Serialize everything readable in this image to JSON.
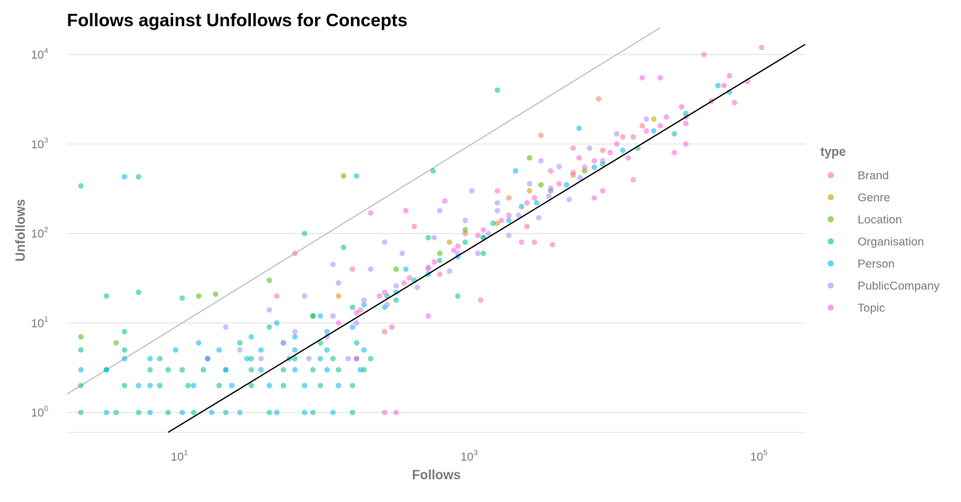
{
  "chart_data": {
    "type": "scatter",
    "title": "Follows against Unfollows for Concepts",
    "xlabel": "Follows",
    "ylabel": "Unfollows",
    "x_scale": "log10",
    "y_scale": "log10",
    "xlim": [
      1.6,
      200000
    ],
    "ylim": [
      0.6,
      20000
    ],
    "x_ticks": [
      {
        "value": 10,
        "base": "10",
        "exp": "1"
      },
      {
        "value": 1000,
        "base": "10",
        "exp": "3"
      },
      {
        "value": 100000,
        "base": "10",
        "exp": "5"
      }
    ],
    "y_ticks": [
      {
        "value": 1,
        "base": "10",
        "exp": "0"
      },
      {
        "value": 10,
        "base": "10",
        "exp": "1"
      },
      {
        "value": 100,
        "base": "10",
        "exp": "2"
      },
      {
        "value": 1000,
        "base": "10",
        "exp": "3"
      },
      {
        "value": 10000,
        "base": "10",
        "exp": "4"
      }
    ],
    "grid": "horizontal",
    "legend_title": "type",
    "legend_position": "right",
    "reference_lines": [
      {
        "kind": "identity",
        "color": "#bdbdbd",
        "points": [
          [
            1.6,
            1.6
          ],
          [
            20000,
            20000
          ]
        ]
      },
      {
        "kind": "fit",
        "color": "#000000",
        "points": [
          [
            8,
            0.6
          ],
          [
            200000,
            13000
          ]
        ]
      }
    ],
    "series": [
      {
        "name": "Brand",
        "color": "#F8766D",
        "points": [
          [
            7500,
            3200
          ],
          [
            13000,
            400
          ],
          [
            3600,
            75
          ],
          [
            2700,
            80
          ],
          [
            1150,
            18
          ],
          [
            250,
            8
          ],
          [
            2400,
            120
          ],
          [
            5000,
            900
          ],
          [
            15000,
            1600
          ],
          [
            8000,
            850
          ],
          [
            60,
            60
          ],
          [
            400,
            120
          ],
          [
            1800,
            250
          ],
          [
            30000,
            2000
          ],
          [
            600,
            35
          ],
          [
            45,
            20
          ],
          [
            3000,
            1250
          ],
          [
            900,
            100
          ],
          [
            150,
            40
          ],
          [
            11000,
            1200
          ]
        ]
      },
      {
        "name": "Genre",
        "color": "#C49A00",
        "points": [
          [
            18000,
            1900
          ],
          [
            2500,
            300
          ],
          [
            700,
            80
          ],
          [
            120,
            20
          ],
          [
            5000,
            450
          ],
          [
            1500,
            130
          ]
        ]
      },
      {
        "name": "Location",
        "color": "#53B400",
        "points": [
          [
            2,
            7
          ],
          [
            3.5,
            6
          ],
          [
            13,
            20
          ],
          [
            17,
            21
          ],
          [
            130,
            440
          ],
          [
            2500,
            700
          ],
          [
            900,
            110
          ],
          [
            300,
            40
          ],
          [
            40,
            30
          ],
          [
            3000,
            350
          ],
          [
            1200,
            90
          ],
          [
            80,
            12
          ],
          [
            6000,
            500
          ],
          [
            600,
            60
          ]
        ]
      },
      {
        "name": "Organisation",
        "color": "#00C094",
        "points": [
          [
            2,
            340
          ],
          [
            5,
            430
          ],
          [
            1500,
            4000
          ],
          [
            70,
            100
          ],
          [
            540,
            500
          ],
          [
            130,
            70
          ],
          [
            10,
            19
          ],
          [
            3,
            20
          ],
          [
            5,
            22
          ],
          [
            1,
            16
          ],
          [
            2,
            5
          ],
          [
            4,
            5
          ],
          [
            4,
            8
          ],
          [
            3,
            3
          ],
          [
            6,
            3
          ],
          [
            8,
            3
          ],
          [
            10,
            3
          ],
          [
            14,
            3
          ],
          [
            20,
            3
          ],
          [
            30,
            3
          ],
          [
            50,
            3
          ],
          [
            80,
            3
          ],
          [
            120,
            3
          ],
          [
            180,
            3
          ],
          [
            2,
            1
          ],
          [
            3.5,
            1
          ],
          [
            5,
            1
          ],
          [
            8,
            1
          ],
          [
            12,
            1
          ],
          [
            20,
            1
          ],
          [
            40,
            1
          ],
          [
            80,
            1
          ],
          [
            150,
            1
          ],
          [
            2,
            2
          ],
          [
            4,
            2
          ],
          [
            7,
            2
          ],
          [
            11,
            2
          ],
          [
            18,
            2
          ],
          [
            30,
            2
          ],
          [
            50,
            2
          ],
          [
            90,
            2
          ],
          [
            150,
            2
          ],
          [
            7,
            4
          ],
          [
            15,
            4
          ],
          [
            30,
            4
          ],
          [
            60,
            4
          ],
          [
            110,
            4
          ],
          [
            200,
            4
          ],
          [
            25,
            6
          ],
          [
            50,
            6
          ],
          [
            90,
            6
          ],
          [
            160,
            6
          ],
          [
            40,
            9
          ],
          [
            80,
            12
          ],
          [
            150,
            15
          ],
          [
            260,
            20
          ],
          [
            400,
            30
          ],
          [
            600,
            50
          ],
          [
            900,
            80
          ],
          [
            1400,
            130
          ],
          [
            2200,
            200
          ],
          [
            3500,
            300
          ],
          [
            25000,
            1300
          ],
          [
            8000,
            600
          ],
          [
            300,
            18
          ],
          [
            800,
            20
          ],
          [
            1200,
            60
          ],
          [
            500,
            90
          ],
          [
            14000,
            900
          ]
        ]
      },
      {
        "name": "Person",
        "color": "#00B6EB",
        "points": [
          [
            4,
            430
          ],
          [
            160,
            440
          ],
          [
            50000,
            4500
          ],
          [
            2000,
            500
          ],
          [
            5500,
            1500
          ],
          [
            1,
            20
          ],
          [
            1,
            3
          ],
          [
            2,
            3
          ],
          [
            3,
            3
          ],
          [
            4,
            4
          ],
          [
            5,
            2
          ],
          [
            6,
            4
          ],
          [
            9,
            5
          ],
          [
            13,
            6
          ],
          [
            3,
            1
          ],
          [
            6,
            1
          ],
          [
            10,
            1
          ],
          [
            16,
            1
          ],
          [
            25,
            1
          ],
          [
            45,
            1
          ],
          [
            70,
            1
          ],
          [
            110,
            1
          ],
          [
            6,
            2
          ],
          [
            12,
            2
          ],
          [
            22,
            2
          ],
          [
            40,
            2
          ],
          [
            70,
            2
          ],
          [
            120,
            2
          ],
          [
            20,
            3
          ],
          [
            35,
            3
          ],
          [
            60,
            3
          ],
          [
            100,
            3
          ],
          [
            170,
            3
          ],
          [
            15,
            4
          ],
          [
            28,
            4
          ],
          [
            55,
            4
          ],
          [
            90,
            4
          ],
          [
            160,
            4
          ],
          [
            18,
            5
          ],
          [
            35,
            5
          ],
          [
            60,
            5
          ],
          [
            100,
            5
          ],
          [
            180,
            5
          ],
          [
            30,
            7
          ],
          [
            60,
            7
          ],
          [
            100,
            8
          ],
          [
            150,
            9
          ],
          [
            45,
            10
          ],
          [
            90,
            12
          ],
          [
            180,
            16
          ],
          [
            300,
            22
          ],
          [
            500,
            35
          ],
          [
            800,
            55
          ],
          [
            1200,
            90
          ],
          [
            1800,
            140
          ],
          [
            2800,
            220
          ],
          [
            4500,
            350
          ],
          [
            7000,
            550
          ],
          [
            11000,
            850
          ],
          [
            18000,
            1400
          ],
          [
            30000,
            2200
          ],
          [
            60000,
            3800
          ],
          [
            350,
            40
          ],
          [
            250,
            15
          ]
        ]
      },
      {
        "name": "PublicCompany",
        "color": "#A58AFF",
        "points": [
          [
            20,
            9
          ],
          [
            40,
            14
          ],
          [
            70,
            20
          ],
          [
            120,
            28
          ],
          [
            200,
            40
          ],
          [
            330,
            60
          ],
          [
            550,
            90
          ],
          [
            900,
            140
          ],
          [
            1500,
            220
          ],
          [
            2500,
            360
          ],
          [
            4000,
            560
          ],
          [
            6500,
            900
          ],
          [
            10000,
            1300
          ],
          [
            16000,
            1900
          ],
          [
            60,
            8
          ],
          [
            110,
            12
          ],
          [
            180,
            18
          ],
          [
            300,
            26
          ],
          [
            500,
            40
          ],
          [
            800,
            60
          ],
          [
            1300,
            100
          ],
          [
            2100,
            160
          ],
          [
            3400,
            260
          ],
          [
            5600,
            420
          ],
          [
            8000,
            650
          ],
          [
            25,
            5
          ],
          [
            50,
            6
          ],
          [
            100,
            7
          ],
          [
            160,
            10
          ],
          [
            260,
            16
          ],
          [
            420,
            25
          ],
          [
            700,
            38
          ],
          [
            1100,
            60
          ],
          [
            1800,
            95
          ],
          [
            2900,
            150
          ],
          [
            4700,
            240
          ],
          [
            15,
            4
          ],
          [
            35,
            4
          ],
          [
            75,
            4
          ],
          [
            140,
            4
          ],
          [
            110,
            45
          ],
          [
            250,
            80
          ],
          [
            600,
            180
          ],
          [
            1000,
            300
          ],
          [
            1500,
            180
          ],
          [
            3000,
            650
          ]
        ]
      },
      {
        "name": "Topic",
        "color": "#FB61D7",
        "points": [
          [
            100000,
            12000
          ],
          [
            40000,
            10000
          ],
          [
            15000,
            5500
          ],
          [
            60000,
            5800
          ],
          [
            20000,
            5500
          ],
          [
            80000,
            5000
          ],
          [
            45000,
            3000
          ],
          [
            28000,
            2600
          ],
          [
            20000,
            1600
          ],
          [
            13000,
            1200
          ],
          [
            9000,
            800
          ],
          [
            6000,
            550
          ],
          [
            4000,
            360
          ],
          [
            2700,
            250
          ],
          [
            1800,
            160
          ],
          [
            1200,
            110
          ],
          [
            800,
            72
          ],
          [
            550,
            48
          ],
          [
            370,
            32
          ],
          [
            250,
            22
          ],
          [
            170,
            14
          ],
          [
            120,
            10
          ],
          [
            30000,
            1700
          ],
          [
            22000,
            2000
          ],
          [
            16000,
            1400
          ],
          [
            10000,
            1000
          ],
          [
            7000,
            650
          ],
          [
            5000,
            480
          ],
          [
            3500,
            320
          ],
          [
            2400,
            220
          ],
          [
            1600,
            140
          ],
          [
            1100,
            95
          ],
          [
            750,
            65
          ],
          [
            500,
            42
          ],
          [
            340,
            28
          ],
          [
            230,
            20
          ],
          [
            160,
            13
          ],
          [
            7000,
            250
          ],
          [
            3500,
            500
          ],
          [
            1500,
            300
          ],
          [
            650,
            230
          ],
          [
            350,
            180
          ],
          [
            200,
            170
          ],
          [
            300,
            1
          ],
          [
            250,
            1
          ],
          [
            280,
            9
          ],
          [
            500,
            12
          ],
          [
            160,
            4
          ],
          [
            8000,
            300
          ],
          [
            12000,
            700
          ],
          [
            30000,
            1000
          ],
          [
            65000,
            2900
          ],
          [
            55000,
            4500
          ],
          [
            25000,
            800
          ],
          [
            5500,
            700
          ],
          [
            2200,
            80
          ]
        ]
      }
    ]
  }
}
